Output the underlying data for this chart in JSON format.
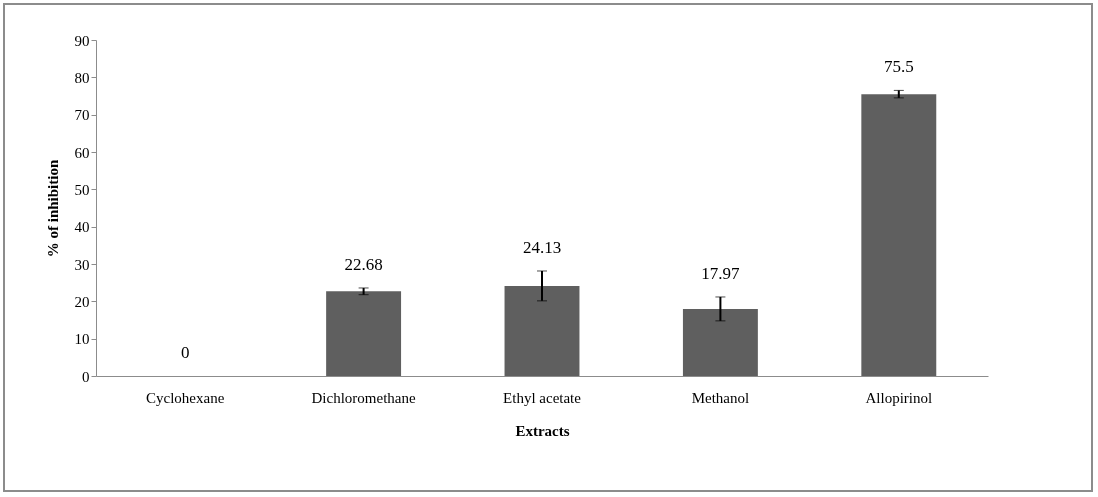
{
  "chart_data": {
    "type": "bar",
    "xlabel": "Extracts",
    "ylabel": "% of inhibition",
    "categories": [
      "Cyclohexane",
      "Dichloromethane",
      "Ethyl acetate",
      "Methanol",
      "Allopirinol"
    ],
    "values": [
      0,
      22.68,
      24.13,
      17.97,
      75.5
    ],
    "errors": [
      null,
      0.9,
      4,
      3.2,
      1
    ],
    "color": "#5f5f5f",
    "ylim": [
      0,
      90
    ],
    "yticks": [
      0,
      10,
      20,
      30,
      40,
      50,
      60,
      70,
      80,
      90
    ],
    "grid": false,
    "data_labels": true
  }
}
